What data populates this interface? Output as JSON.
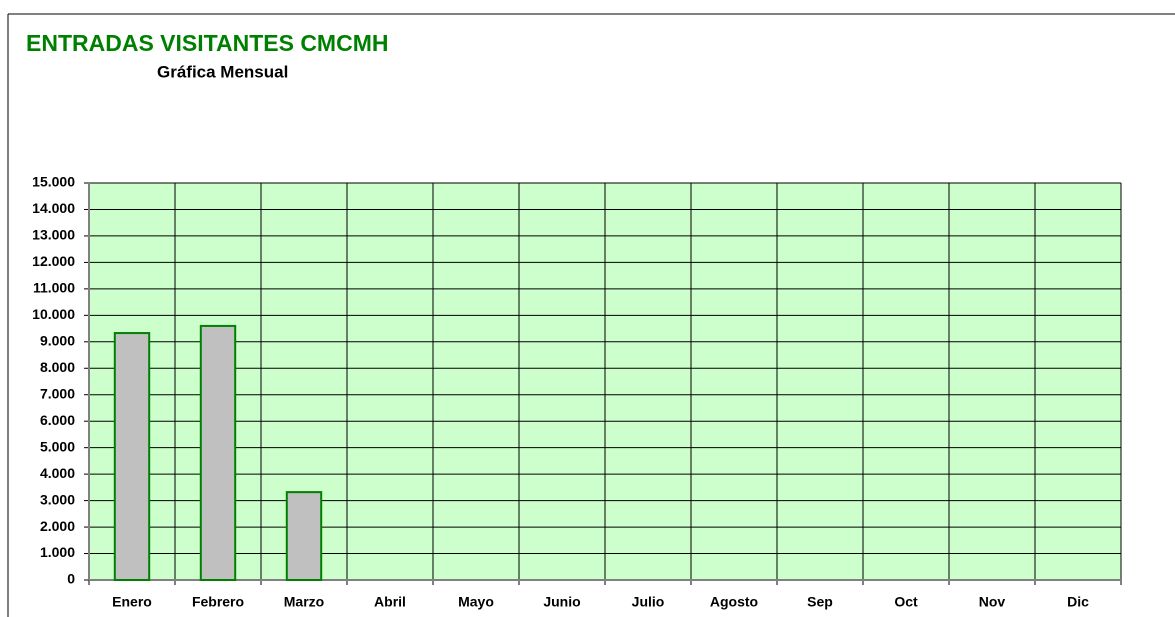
{
  "chart_data": {
    "type": "bar",
    "title": "ENTRADAS VISITANTES CMCMH",
    "subtitle": "Gráfica Mensual",
    "categories": [
      "Enero",
      "Febrero",
      "Marzo",
      "Abril",
      "Mayo",
      "Junio",
      "Julio",
      "Agosto",
      "Sep",
      "Oct",
      "Nov",
      "Dic"
    ],
    "values": [
      9330,
      9600,
      3320,
      null,
      null,
      null,
      null,
      null,
      null,
      null,
      null,
      null
    ],
    "color": "#c0c0c0",
    "edge_color": "#008000",
    "background": "#ccffcc",
    "ylim": [
      0,
      15000
    ],
    "yticks": [
      0,
      {
        "value": 1000,
        "label": "1.000"
      },
      {
        "value": 2000,
        "label": "2.000"
      },
      {
        "value": 3000,
        "label": "3.000"
      },
      {
        "value": 4000,
        "label": "4.000"
      },
      {
        "value": 5000,
        "label": "5.000"
      },
      {
        "value": 6000,
        "label": "6.000"
      },
      {
        "value": 7000,
        "label": "7.000"
      },
      {
        "value": 8000,
        "label": "8.000"
      },
      {
        "value": 9000,
        "label": "9.000"
      },
      {
        "value": 10000,
        "label": "10.000"
      },
      {
        "value": 11000,
        "label": "11.000"
      },
      {
        "value": 12000,
        "label": "12.000"
      },
      {
        "value": 13000,
        "label": "13.000"
      },
      {
        "value": 14000,
        "label": "14.000"
      },
      {
        "value": 15000,
        "label": "15.000"
      }
    ],
    "grid": true
  }
}
